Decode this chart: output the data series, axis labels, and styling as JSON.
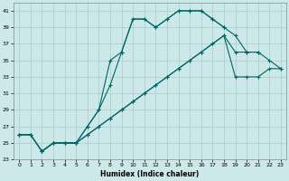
{
  "xlabel": "Humidex (Indice chaleur)",
  "background_color": "#cce8e8",
  "grid_color": "#aacccc",
  "line_color": "#006666",
  "xlim": [
    -0.5,
    23.5
  ],
  "ylim": [
    23,
    42
  ],
  "xticks": [
    0,
    1,
    2,
    3,
    4,
    5,
    6,
    7,
    8,
    9,
    10,
    11,
    12,
    13,
    14,
    15,
    16,
    17,
    18,
    19,
    20,
    21,
    22,
    23
  ],
  "yticks": [
    23,
    25,
    27,
    29,
    31,
    33,
    35,
    37,
    39,
    41
  ],
  "line1_x": [
    0,
    1,
    2,
    3,
    4,
    5,
    6,
    7,
    8,
    9,
    10,
    11,
    12,
    13,
    14,
    15,
    16,
    17,
    18
  ],
  "line1_y": [
    26,
    26,
    24,
    25,
    25,
    25,
    27,
    29,
    32,
    36,
    40,
    40,
    39,
    40,
    41,
    41,
    41,
    40,
    39
  ],
  "line2_x": [
    2,
    3,
    4,
    5,
    6,
    7,
    8,
    9,
    10,
    11,
    12,
    13,
    14,
    15,
    16,
    17,
    18,
    19,
    20,
    21
  ],
  "line2_y": [
    24,
    25,
    25,
    25,
    27,
    29,
    35,
    36,
    40,
    40,
    39,
    40,
    41,
    41,
    41,
    40,
    39,
    38,
    36,
    36
  ],
  "line3_x": [
    0,
    1,
    2,
    3,
    4,
    5,
    6,
    7,
    8,
    9,
    10,
    11,
    12,
    13,
    14,
    15,
    16,
    17,
    18,
    19,
    20,
    21,
    22,
    23
  ],
  "line3_y": [
    26,
    26,
    24,
    25,
    25,
    25,
    26,
    27,
    28,
    29,
    30,
    31,
    32,
    33,
    34,
    35,
    36,
    37,
    38,
    36,
    36,
    36,
    35,
    34
  ],
  "line4_x": [
    0,
    1,
    2,
    3,
    4,
    5,
    6,
    7,
    8,
    9,
    10,
    11,
    12,
    13,
    14,
    15,
    16,
    17,
    18,
    19,
    20,
    21,
    22,
    23
  ],
  "line4_y": [
    26,
    26,
    24,
    25,
    25,
    25,
    26,
    27,
    28,
    29,
    30,
    31,
    32,
    33,
    34,
    35,
    36,
    37,
    38,
    33,
    33,
    33,
    34,
    34
  ]
}
